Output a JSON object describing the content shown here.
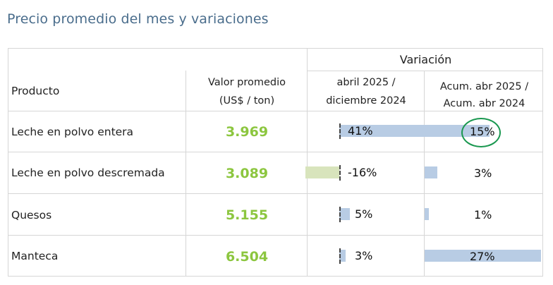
{
  "title": "Precio promedio del mes y variaciones",
  "header": {
    "variacion": "Variación",
    "producto": "Producto",
    "valor_line1": "Valor promedio",
    "valor_line2": "(US$ / ton)",
    "col1_line1": "abril 2025 /",
    "col1_line2": "diciembre 2024",
    "col2_line1": "Acum. abr 2025 /",
    "col2_line2": "Acum. abr 2024"
  },
  "rows": [
    {
      "producto": "Leche en polvo entera",
      "valor": "3.969",
      "var1": 41,
      "var1_label": "41%",
      "var2": 15,
      "var2_label": "15%"
    },
    {
      "producto": "Leche en polvo descremada",
      "valor": "3.089",
      "var1": -16,
      "var1_label": "-16%",
      "var2": 3,
      "var2_label": "3%"
    },
    {
      "producto": "Quesos",
      "valor": "5.155",
      "var1": 5,
      "var1_label": "5%",
      "var2": 1,
      "var2_label": "1%"
    },
    {
      "producto": "Manteca",
      "valor": "6.504",
      "var1": 3,
      "var1_label": "3%",
      "var2": 27,
      "var2_label": "27%"
    }
  ],
  "colors": {
    "title": "#4a6d8c",
    "value": "#8cc63f",
    "bar_positive": "#b8cce4",
    "bar_negative": "#d8e4bc",
    "highlight_circle": "#1a9850"
  },
  "highlight": {
    "row": 0,
    "column": "var2"
  }
}
